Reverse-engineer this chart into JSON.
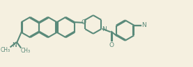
{
  "background_color": "#f5f0e0",
  "line_color": "#5a8a7a",
  "line_width": 1.5,
  "fig_width": 2.77,
  "fig_height": 0.97,
  "dpi": 100,
  "xlim": [
    0,
    27.7
  ],
  "ylim": [
    0,
    9.7
  ]
}
